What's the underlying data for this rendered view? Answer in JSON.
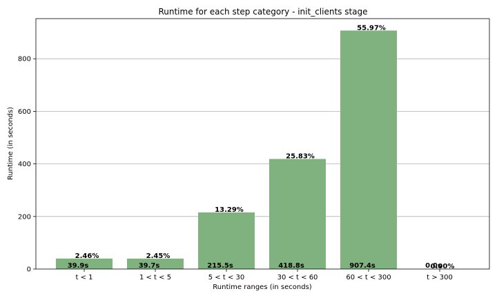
{
  "chart_data": {
    "type": "bar",
    "title": "Runtime for each step category - init_clients stage",
    "xlabel": "Runtime ranges (in seconds)",
    "ylabel": "Runtime (in seconds)",
    "categories": [
      "t < 1",
      "1 < t < 5",
      "5 < t < 30",
      "30 < t < 60",
      "60 < t < 300",
      "t > 300"
    ],
    "values": [
      39.9,
      39.7,
      215.5,
      418.8,
      907.4,
      0.0
    ],
    "value_labels": [
      "39.9s",
      "39.7s",
      "215.5s",
      "418.8s",
      "907.4s",
      "0.0s"
    ],
    "percent_labels": [
      "2.46%",
      "2.45%",
      "13.29%",
      "25.83%",
      "55.97%",
      "0.00%"
    ],
    "ylim": [
      0,
      952.77
    ],
    "yticks": [
      0,
      200,
      400,
      600,
      800
    ],
    "grid": "horizontal",
    "bar_color": "#80b27f"
  }
}
